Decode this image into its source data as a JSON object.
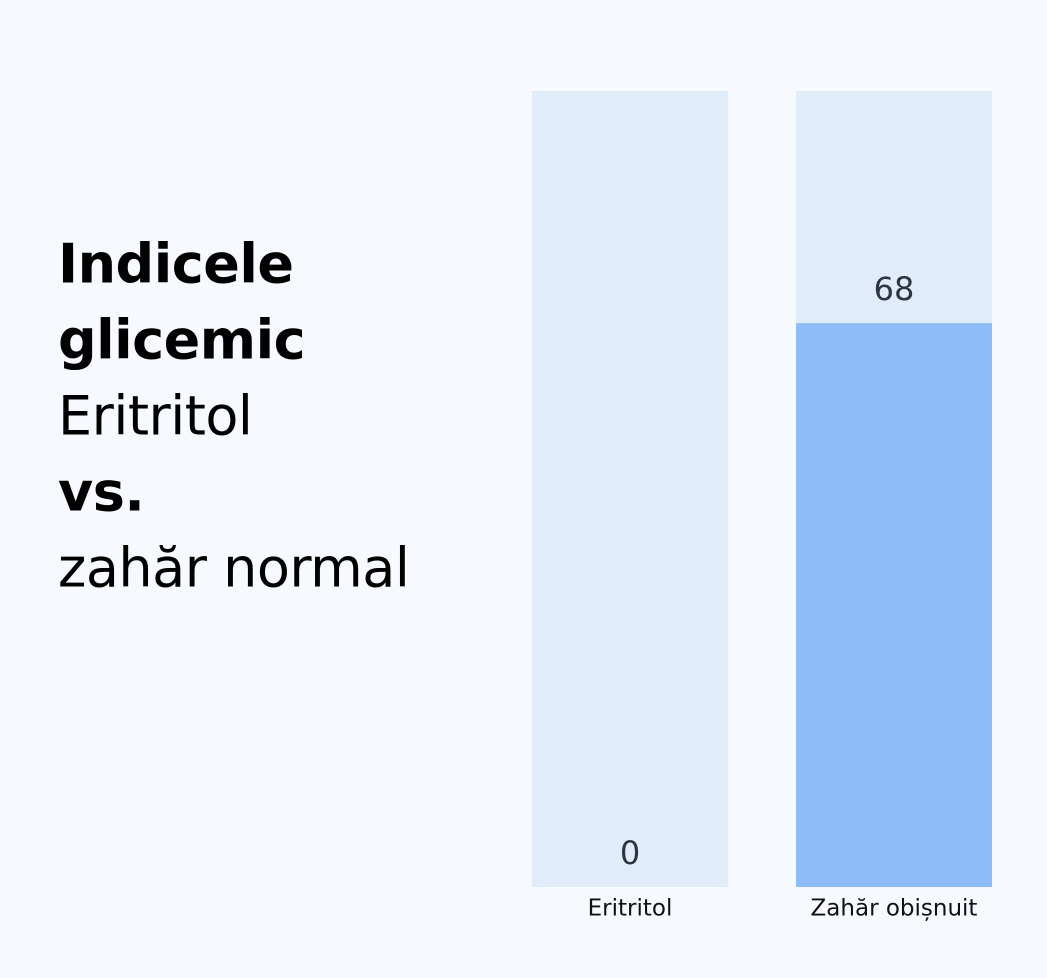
{
  "chart_data": {
    "type": "bar",
    "title": [
      "Indicele",
      "glicemic",
      "Eritritol",
      "vs.",
      "zahăr normal"
    ],
    "categories": [
      "Eritritol",
      "Zahăr obișnuit"
    ],
    "values": [
      0,
      68
    ],
    "color": "#8dbcf8",
    "track_color": "#e1ecfb",
    "ylim": [
      0,
      96
    ]
  }
}
